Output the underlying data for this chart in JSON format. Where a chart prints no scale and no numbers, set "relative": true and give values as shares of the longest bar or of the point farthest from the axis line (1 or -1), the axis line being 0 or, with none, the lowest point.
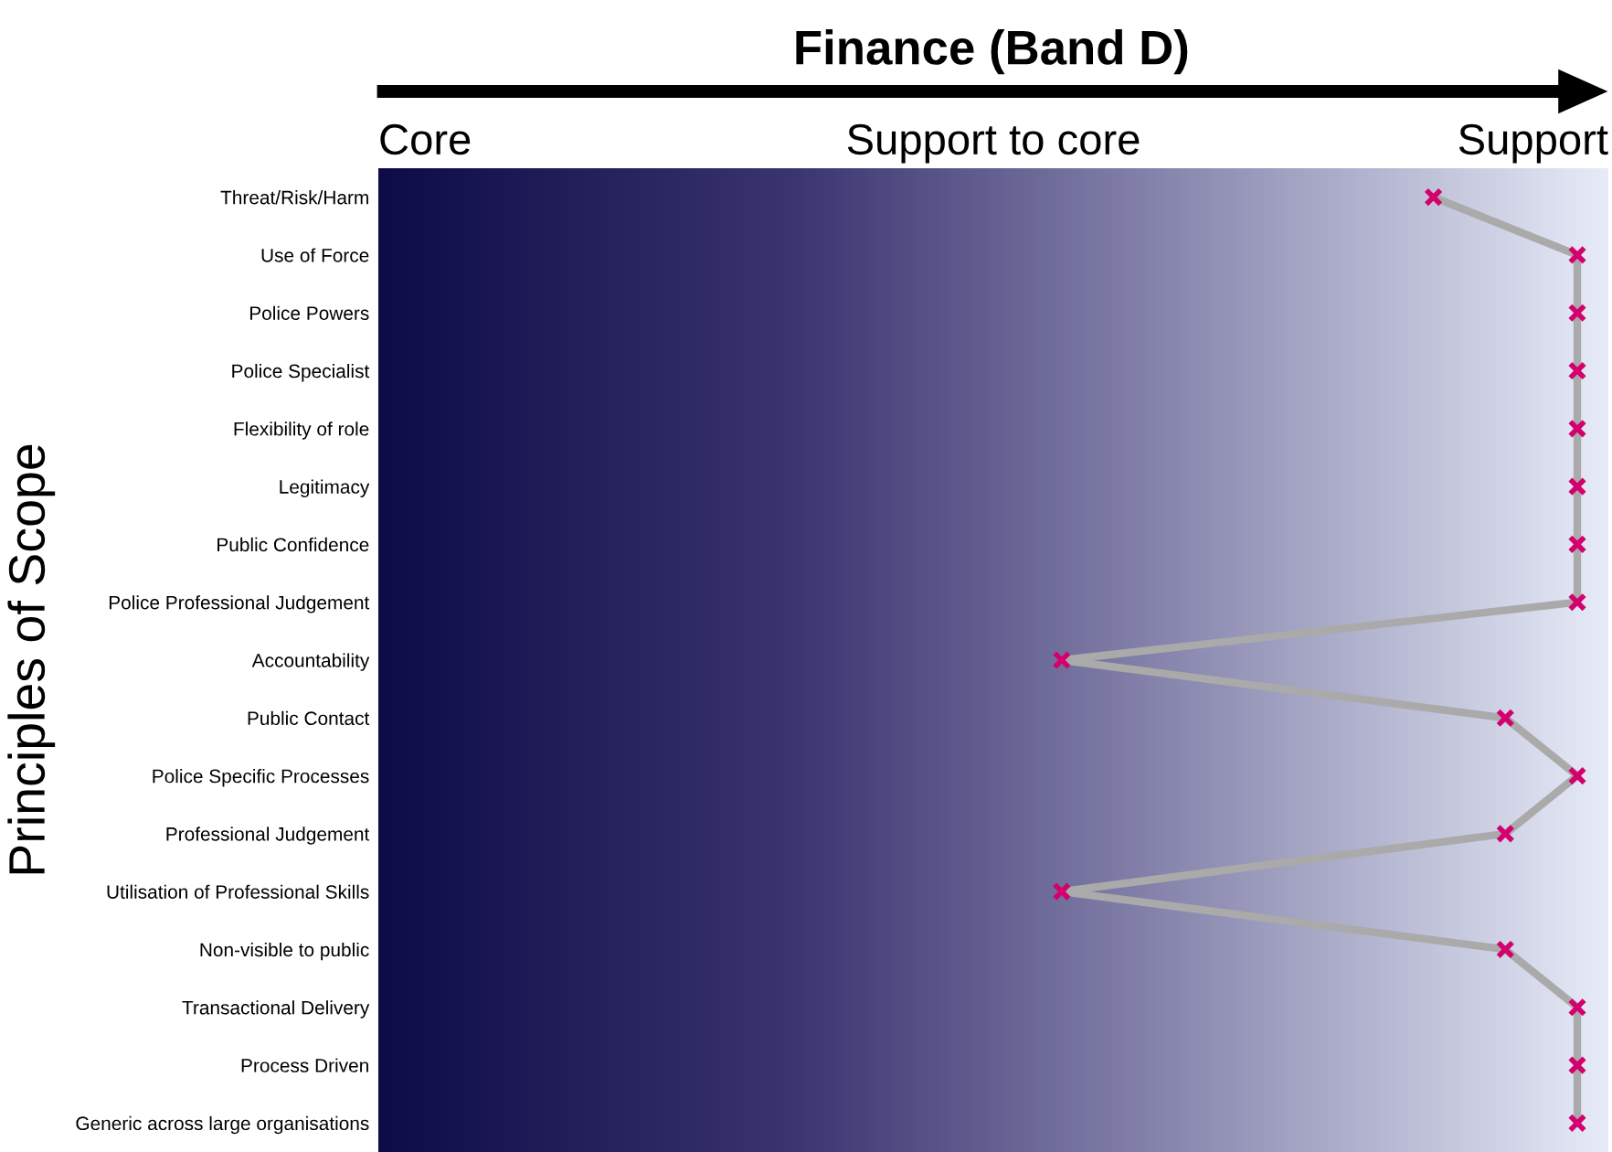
{
  "chart_data": {
    "type": "line",
    "orientation": "horizontal",
    "relative": true,
    "title": "Finance (Band D)",
    "ylabel": "Principles of Scope",
    "categories": [
      "Threat/Risk/Harm",
      "Use of Force",
      "Police Powers",
      "Police Specialist",
      "Flexibility of role",
      "Legitimacy",
      "Public Confidence",
      "Police Professional Judgement",
      "Accountability",
      "Public Contact",
      "Police Specific Processes",
      "Professional Judgement",
      "Utilisation of Professional Skills",
      "Non-visible to public",
      "Transactional Delivery",
      "Process Driven",
      "Generic across large organisations"
    ],
    "series": [
      {
        "color": "#aaaaaa",
        "marker": "none",
        "values": [
          0.88,
          1,
          1,
          1,
          1,
          1,
          1,
          1,
          0.57,
          0.94,
          1,
          0.94,
          0.57,
          0.94,
          1,
          1,
          1
        ]
      },
      {
        "type": "scatter",
        "color": "#d4006e",
        "marker": "cross",
        "values": [
          0.88,
          1,
          1,
          1,
          1,
          1,
          1,
          1,
          0.57,
          0.94,
          1,
          0.94,
          0.57,
          0.94,
          1,
          1,
          1
        ]
      }
    ],
    "annotations": [
      "Core",
      "Support to core",
      "Support"
    ],
    "grid": false,
    "legend": false
  }
}
